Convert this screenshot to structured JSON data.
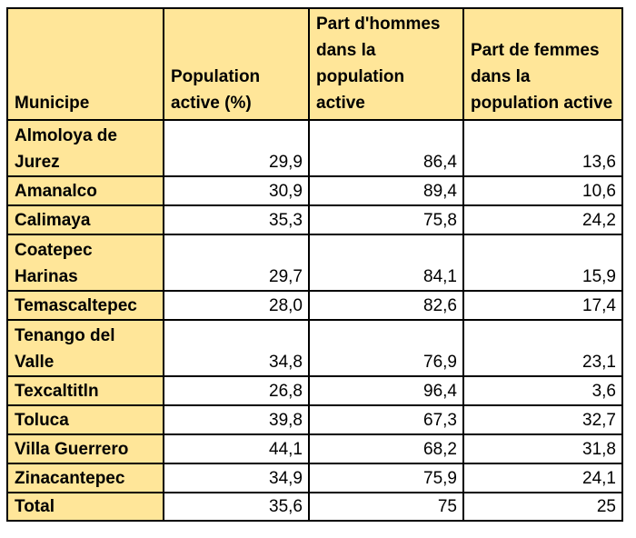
{
  "table": {
    "headers": [
      "Municipe",
      "Population active (%)",
      "Part d'hommes dans la population active",
      "Part de femmes dans la population active"
    ],
    "rows": [
      {
        "municipe": "Almoloya de Jurez",
        "population_active": "29,9",
        "part_hommes": "86,4",
        "part_femmes": "13,6"
      },
      {
        "municipe": "Amanalco",
        "population_active": "30,9",
        "part_hommes": "89,4",
        "part_femmes": "10,6"
      },
      {
        "municipe": "Calimaya",
        "population_active": "35,3",
        "part_hommes": "75,8",
        "part_femmes": "24,2"
      },
      {
        "municipe": "Coatepec Harinas",
        "population_active": "29,7",
        "part_hommes": "84,1",
        "part_femmes": "15,9"
      },
      {
        "municipe": "Temascaltepec",
        "population_active": "28,0",
        "part_hommes": "82,6",
        "part_femmes": "17,4"
      },
      {
        "municipe": "Tenango del Valle",
        "population_active": "34,8",
        "part_hommes": "76,9",
        "part_femmes": "23,1"
      },
      {
        "municipe": "Texcaltitln",
        "population_active": "26,8",
        "part_hommes": "96,4",
        "part_femmes": "3,6"
      },
      {
        "municipe": "Toluca",
        "population_active": "39,8",
        "part_hommes": "67,3",
        "part_femmes": "32,7"
      },
      {
        "municipe": "Villa Guerrero",
        "population_active": "44,1",
        "part_hommes": "68,2",
        "part_femmes": "31,8"
      },
      {
        "municipe": "Zinacantepec",
        "population_active": "34,9",
        "part_hommes": "75,9",
        "part_femmes": "24,1"
      }
    ],
    "total": {
      "municipe": "Total",
      "population_active": "35,6",
      "part_hommes": "75",
      "part_femmes": "25"
    }
  },
  "colors": {
    "header_fill": "#ffe699",
    "border": "#000000",
    "cell_fill": "#ffffff"
  }
}
